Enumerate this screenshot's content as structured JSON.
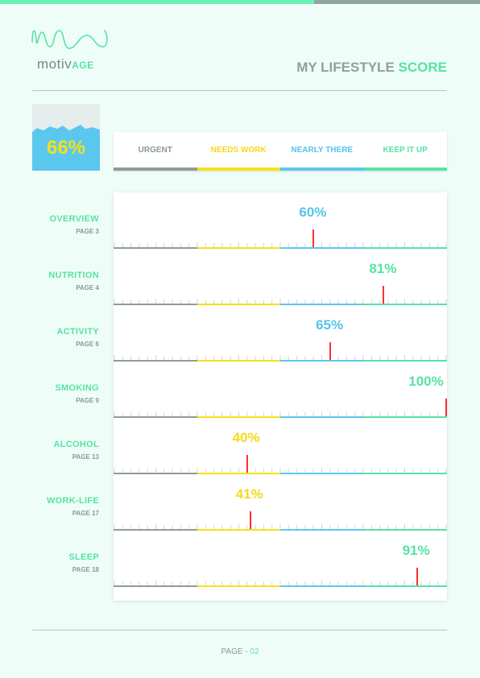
{
  "brand": {
    "name": "motiv",
    "suffix": "AGE",
    "logo_icon": "wave-logo-icon"
  },
  "header": {
    "title_prefix": "MY LIFESTYLE",
    "title_highlight": "SCORE"
  },
  "overall": {
    "score_label": "66%",
    "score": 0.66
  },
  "legend": [
    {
      "label": "URGENT",
      "color": "#8f9c9b",
      "text_color": "#8a9896"
    },
    {
      "label": "NEEDS WORK",
      "color": "#f6e019",
      "text_color": "#f6d91a"
    },
    {
      "label": "NEARLY THERE",
      "color": "#5cc7ee",
      "text_color": "#55c3ea"
    },
    {
      "label": "KEEP IT UP",
      "color": "#56e3a3",
      "text_color": "#56e3a3"
    }
  ],
  "categories": [
    {
      "name": "OVERVIEW",
      "page": "PAGE 3",
      "pct_label": "60%",
      "value": 60,
      "color": "#55c3ea"
    },
    {
      "name": "NUTRITION",
      "page": "PAGE 4",
      "pct_label": "81%",
      "value": 81,
      "color": "#56e3a3"
    },
    {
      "name": "ACTIVITY",
      "page": "PAGE 6",
      "pct_label": "65%",
      "value": 65,
      "color": "#55c3ea"
    },
    {
      "name": "SMOKING",
      "page": "PAGE 9",
      "pct_label": "100%",
      "value": 100,
      "color": "#56e3a3"
    },
    {
      "name": "ALCOHOL",
      "page": "PAGE 13",
      "pct_label": "40%",
      "value": 40,
      "color": "#f6d91a"
    },
    {
      "name": "WORK-LIFE",
      "page": "PAGE 17",
      "pct_label": "41%",
      "value": 41,
      "color": "#f6d91a"
    },
    {
      "name": "SLEEP",
      "page": "PAGE 18",
      "pct_label": "91%",
      "value": 91,
      "color": "#56e3a3"
    }
  ],
  "footer": {
    "prefix": "PAGE - ",
    "number": "02"
  }
}
